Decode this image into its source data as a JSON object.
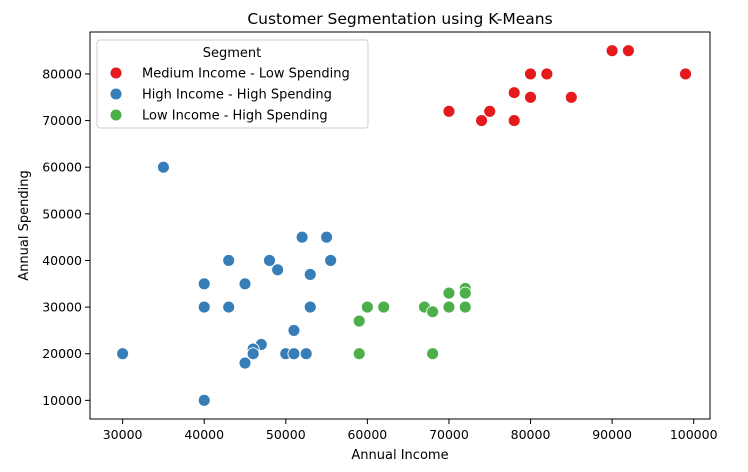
{
  "chart_data": {
    "type": "scatter",
    "title": "Customer Segmentation using K-Means",
    "xlabel": "Annual Income",
    "ylabel": "Annual Spending",
    "xlim": [
      26000,
      102000
    ],
    "ylim": [
      6000,
      89000
    ],
    "xticks": [
      30000,
      40000,
      50000,
      60000,
      70000,
      80000,
      90000,
      100000
    ],
    "yticks": [
      10000,
      20000,
      30000,
      40000,
      50000,
      60000,
      70000,
      80000
    ],
    "grid": false,
    "legend": {
      "title": "Segment",
      "placement": "top-left"
    },
    "series": [
      {
        "name": "Medium Income - Low Spending",
        "color": "#e41a1c",
        "points": [
          [
            90000,
            85000
          ],
          [
            92000,
            85000
          ],
          [
            80000,
            80000
          ],
          [
            82000,
            80000
          ],
          [
            99000,
            80000
          ],
          [
            78000,
            76000
          ],
          [
            80000,
            75000
          ],
          [
            85000,
            75000
          ],
          [
            70000,
            72000
          ],
          [
            75000,
            72000
          ],
          [
            74000,
            70000
          ],
          [
            78000,
            70000
          ]
        ]
      },
      {
        "name": "High Income - High Spending",
        "color": "#377eb8",
        "points": [
          [
            35000,
            60000
          ],
          [
            52000,
            45000
          ],
          [
            55000,
            45000
          ],
          [
            43000,
            40000
          ],
          [
            48000,
            40000
          ],
          [
            55500,
            40000
          ],
          [
            49000,
            38000
          ],
          [
            53000,
            37000
          ],
          [
            40000,
            35000
          ],
          [
            45000,
            35000
          ],
          [
            40000,
            30000
          ],
          [
            43000,
            30000
          ],
          [
            53000,
            30000
          ],
          [
            51000,
            25000
          ],
          [
            47000,
            22000
          ],
          [
            46000,
            21000
          ],
          [
            30000,
            20000
          ],
          [
            46000,
            20000
          ],
          [
            50000,
            20000
          ],
          [
            51000,
            20000
          ],
          [
            52500,
            20000
          ],
          [
            45000,
            18000
          ],
          [
            40000,
            10000
          ]
        ]
      },
      {
        "name": "Low Income - High Spending",
        "color": "#4daf4a",
        "points": [
          [
            72000,
            34000
          ],
          [
            70000,
            33000
          ],
          [
            72000,
            33000
          ],
          [
            60000,
            30000
          ],
          [
            62000,
            30000
          ],
          [
            67000,
            30000
          ],
          [
            70000,
            30000
          ],
          [
            72000,
            30000
          ],
          [
            68000,
            29000
          ],
          [
            59000,
            27000
          ],
          [
            59000,
            20000
          ],
          [
            68000,
            20000
          ]
        ]
      }
    ]
  }
}
